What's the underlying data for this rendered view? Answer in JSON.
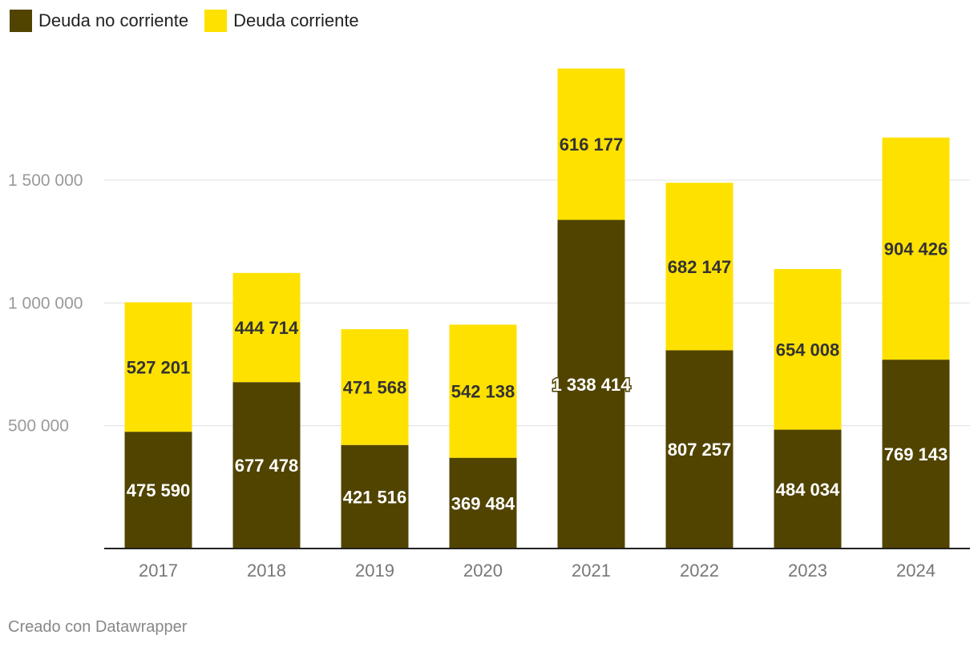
{
  "chart_data": {
    "type": "bar",
    "stacked": true,
    "categories": [
      "2017",
      "2018",
      "2019",
      "2020",
      "2021",
      "2022",
      "2023",
      "2024"
    ],
    "series": [
      {
        "name": "Deuda no corriente",
        "color": "#514400",
        "label_color": "#ffffff",
        "values": [
          475590,
          677478,
          421516,
          369484,
          1338414,
          807257,
          484034,
          769143
        ],
        "labels": [
          "475 590",
          "677 478",
          "421 516",
          "369 484",
          "1 338 414",
          "807 257",
          "484 034",
          "769 143"
        ]
      },
      {
        "name": "Deuda corriente",
        "color": "#ffe100",
        "label_color": "#333333",
        "values": [
          527201,
          444714,
          471568,
          542138,
          616177,
          682147,
          654008,
          904426
        ],
        "labels": [
          "527 201",
          "444 714",
          "471 568",
          "542 138",
          "616 177",
          "682 147",
          "654 008",
          "904 426"
        ]
      }
    ],
    "y_ticks": [
      {
        "value": 500000,
        "label": "500 000"
      },
      {
        "value": 1000000,
        "label": "1 000 000"
      },
      {
        "value": 1500000,
        "label": "1 500 000"
      }
    ],
    "ylim": [
      0,
      1960000
    ],
    "grid": true,
    "legend_position": "top-left",
    "title": "",
    "xlabel": "",
    "ylabel": ""
  },
  "footer": {
    "credit": "Creado con Datawrapper"
  }
}
